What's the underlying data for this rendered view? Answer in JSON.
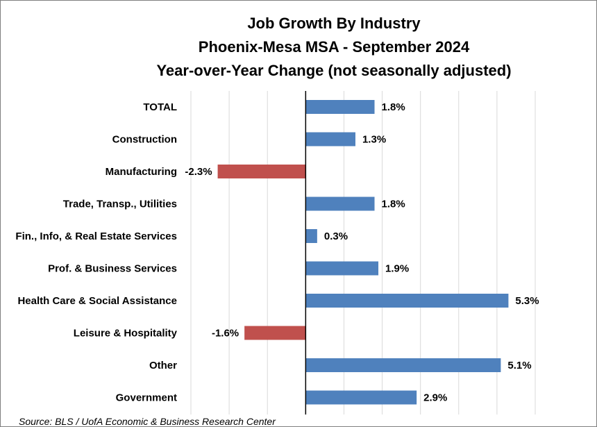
{
  "chart_data": {
    "type": "bar",
    "orientation": "horizontal",
    "title": [
      "Job Growth By Industry",
      "Phoenix-Mesa MSA - September 2024",
      "Year-over-Year Change (not seasonally adjusted)"
    ],
    "categories": [
      "TOTAL",
      "Construction",
      "Manufacturing",
      "Trade, Transp., Utilities",
      "Fin., Info, & Real Estate Services",
      "Prof. & Business Services",
      "Health Care & Social Assistance",
      "Leisure & Hospitality",
      "Other",
      "Government"
    ],
    "values": [
      1.8,
      1.3,
      -2.3,
      1.8,
      0.3,
      1.9,
      5.3,
      -1.6,
      5.1,
      2.9
    ],
    "value_labels": [
      "1.8%",
      "1.3%",
      "-2.3%",
      "1.8%",
      "0.3%",
      "1.9%",
      "5.3%",
      "-1.6%",
      "5.1%",
      "2.9%"
    ],
    "xlim": [
      -3,
      6
    ],
    "gridlines": true,
    "xaxis_visible": false,
    "colors": {
      "positive": "#4f81bd",
      "negative": "#c0504d"
    },
    "source": "Source: BLS / UofA Economic & Business Research Center"
  }
}
